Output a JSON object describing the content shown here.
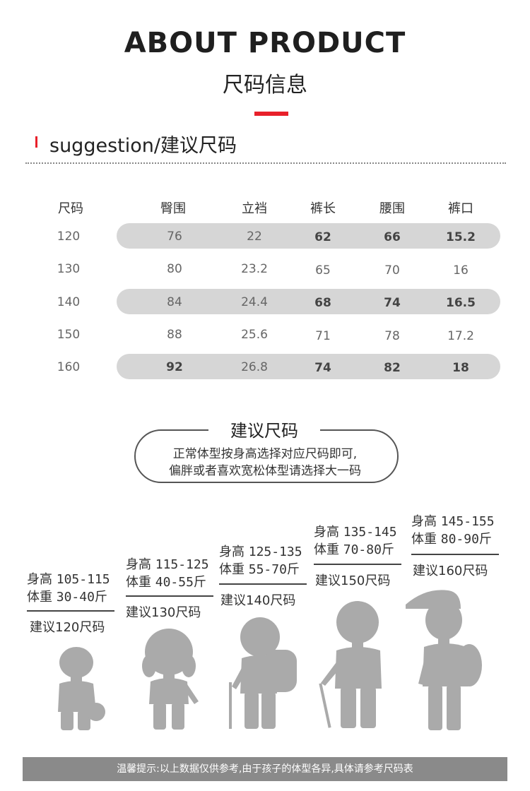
{
  "header": {
    "title_en": "ABOUT PRODUCT",
    "title_cn": "尺码信息"
  },
  "section": {
    "title": "suggestion/建议尺码"
  },
  "size_table": {
    "columns": [
      "尺码",
      "臀围",
      "立裆",
      "裤长",
      "腰围",
      "裤口"
    ],
    "rows": [
      [
        "120",
        "76",
        "22",
        "62",
        "66",
        "15.2"
      ],
      [
        "130",
        "80",
        "23.2",
        "65",
        "70",
        "16"
      ],
      [
        "140",
        "84",
        "24.4",
        "68",
        "74",
        "16.5"
      ],
      [
        "150",
        "88",
        "25.6",
        "71",
        "78",
        "17.2"
      ],
      [
        "160",
        "92",
        "26.8",
        "74",
        "82",
        "18"
      ]
    ]
  },
  "advice": {
    "title": "建议尺码",
    "line1": "正常体型按身高选择对应尺码即可,",
    "line2": "偏胖或者喜欢宽松体型请选择大一码"
  },
  "kids": [
    {
      "height_label": "身高",
      "height": "105-115",
      "weight_label": "体重",
      "weight": "30-40斤",
      "suggest": "建议120尺码"
    },
    {
      "height_label": "身高",
      "height": "115-125",
      "weight_label": "体重",
      "weight": "40-55斤",
      "suggest": "建议130尺码"
    },
    {
      "height_label": "身高",
      "height": "125-135",
      "weight_label": "体重",
      "weight": "55-70斤",
      "suggest": "建议140尺码"
    },
    {
      "height_label": "身高",
      "height": "135-145",
      "weight_label": "体重",
      "weight": "70-80斤",
      "suggest": "建议150尺码"
    },
    {
      "height_label": "身高",
      "height": "145-155",
      "weight_label": "体重",
      "weight": "80-90斤",
      "suggest": "建议160尺码"
    }
  ],
  "footer": {
    "note": "温馨提示:以上数据仅供参考,由于孩子的体型各异,具体请参考尺码表"
  },
  "colors": {
    "accent_red": "#e8202a",
    "row_band": "#d6d6d6",
    "silhouette": "#aaaaaa",
    "footer_bg": "#8a8a8a",
    "dot_teal": "#29c1c7"
  }
}
